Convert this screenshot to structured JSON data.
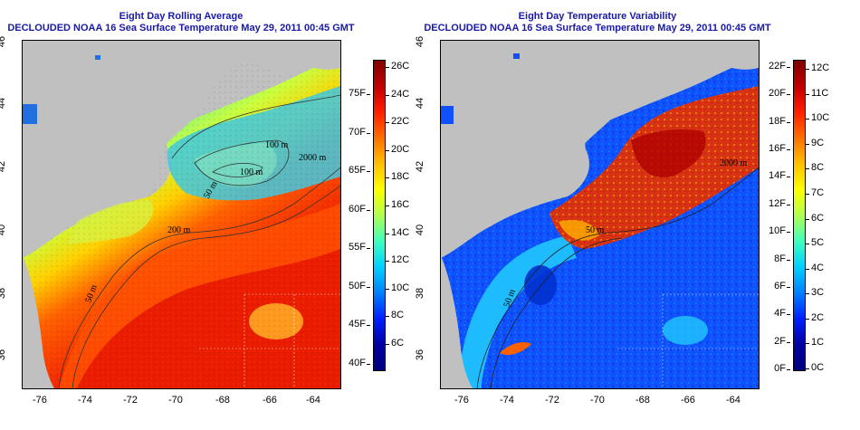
{
  "left_panel": {
    "title_line1": "Eight Day Rolling Average",
    "title_line2": "DECLOUDED NOAA 16 Sea Surface Temperature May 29, 2011 00:45 GMT",
    "colorbar_celsius": [
      "26C",
      "24C",
      "22C",
      "20C",
      "18C",
      "16C",
      "14C",
      "12C",
      "10C",
      "8C",
      "6C"
    ],
    "colorbar_fahrenheit": [
      "75F",
      "70F",
      "65F",
      "60F",
      "55F",
      "50F",
      "45F",
      "40F"
    ],
    "contour_labels": [
      "100 m",
      "100 m",
      "2000 m",
      "50 m",
      "200 m",
      "50 m"
    ]
  },
  "right_panel": {
    "title_line1": "Eight Day Temperature Variability",
    "title_line2": "DECLOUDED NOAA 16 Sea Surface Temperature May 29, 2011 00:45 GMT",
    "colorbar_celsius": [
      "12C",
      "11C",
      "10C",
      "9C",
      "8C",
      "7C",
      "6C",
      "5C",
      "4C",
      "3C",
      "2C",
      "1C",
      "0C"
    ],
    "colorbar_fahrenheit": [
      "22F",
      "20F",
      "18F",
      "16F",
      "14F",
      "12F",
      "10F",
      "8F",
      "6F",
      "4F",
      "2F",
      "0F"
    ],
    "contour_labels": [
      "2000 m",
      "50 m",
      "50 m"
    ]
  },
  "axes": {
    "longitude_ticks": [
      "-76",
      "-74",
      "-72",
      "-70",
      "-68",
      "-66",
      "-64"
    ],
    "latitude_ticks": [
      "46",
      "44",
      "42",
      "40",
      "38",
      "36"
    ]
  },
  "colors": {
    "land": "#c0c0c0",
    "title": "#1a1aa6",
    "sst_scale": [
      "#00008f",
      "#0000ff",
      "#0060ff",
      "#00bfff",
      "#30ffcf",
      "#9fff60",
      "#ffff00",
      "#ffbf00",
      "#ff6000",
      "#ff0000",
      "#bf0000",
      "#800000"
    ]
  }
}
